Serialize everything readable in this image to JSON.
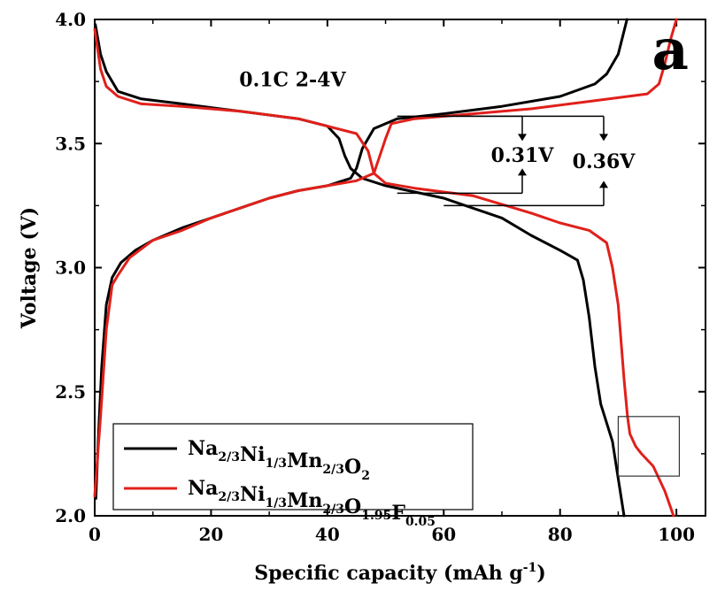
{
  "chart_data": {
    "type": "line",
    "xlabel": "Specific capacity (mAh g",
    "xlabel_sup": "-1",
    "xlabel_close": ")",
    "ylabel": "Voltage (V)",
    "xlim": [
      0,
      105
    ],
    "ylim": [
      2.0,
      4.0
    ],
    "x_ticks": [
      "0",
      "20",
      "40",
      "60",
      "80",
      "100"
    ],
    "y_ticks": [
      "2.0",
      "2.5",
      "3.0",
      "3.5",
      "4.0"
    ],
    "annotation": "0.1C 2-4V",
    "panel_label": "a",
    "voltage_gaps": [
      "0.31V",
      "0.36V"
    ],
    "legend_position": "bottom-left",
    "series": [
      {
        "name": "Na2/3Ni1/3Mn2/3O2",
        "color": "#000000",
        "segments": [
          {
            "label": "charge",
            "points": [
              [
                0.2,
                2.07
              ],
              [
                0.6,
                2.3
              ],
              [
                1.2,
                2.6
              ],
              [
                2,
                2.85
              ],
              [
                3,
                2.96
              ],
              [
                4.5,
                3.02
              ],
              [
                7,
                3.07
              ],
              [
                10,
                3.11
              ],
              [
                15,
                3.16
              ],
              [
                20,
                3.2
              ],
              [
                25,
                3.24
              ],
              [
                30,
                3.28
              ],
              [
                35,
                3.31
              ],
              [
                40,
                3.33
              ],
              [
                44,
                3.36
              ],
              [
                45,
                3.4
              ],
              [
                46,
                3.48
              ],
              [
                48,
                3.56
              ],
              [
                52,
                3.6
              ],
              [
                60,
                3.62
              ],
              [
                70,
                3.65
              ],
              [
                80,
                3.69
              ],
              [
                86,
                3.74
              ],
              [
                88,
                3.78
              ],
              [
                90,
                3.86
              ],
              [
                91.5,
                4.0
              ]
            ]
          },
          {
            "label": "discharge",
            "points": [
              [
                0.1,
                3.98
              ],
              [
                1,
                3.86
              ],
              [
                2,
                3.79
              ],
              [
                4,
                3.71
              ],
              [
                8,
                3.68
              ],
              [
                15,
                3.66
              ],
              [
                25,
                3.63
              ],
              [
                35,
                3.6
              ],
              [
                40,
                3.57
              ],
              [
                42,
                3.52
              ],
              [
                43,
                3.45
              ],
              [
                44,
                3.4
              ],
              [
                46,
                3.36
              ],
              [
                50,
                3.33
              ],
              [
                60,
                3.28
              ],
              [
                70,
                3.2
              ],
              [
                75,
                3.13
              ],
              [
                80,
                3.07
              ],
              [
                83,
                3.03
              ],
              [
                84,
                2.95
              ],
              [
                85,
                2.8
              ],
              [
                86,
                2.6
              ],
              [
                87,
                2.45
              ],
              [
                89,
                2.3
              ],
              [
                90,
                2.15
              ],
              [
                91,
                2.0
              ]
            ]
          }
        ]
      },
      {
        "name": "Na2/3Ni1/3Mn2/3O1.95F0.05",
        "color": "#e0201b",
        "segments": [
          {
            "label": "charge",
            "points": [
              [
                0,
                2.08
              ],
              [
                1,
                2.4
              ],
              [
                2,
                2.75
              ],
              [
                3,
                2.93
              ],
              [
                4,
                2.97
              ],
              [
                6,
                3.04
              ],
              [
                10,
                3.11
              ],
              [
                15,
                3.15
              ],
              [
                20,
                3.2
              ],
              [
                25,
                3.24
              ],
              [
                30,
                3.28
              ],
              [
                35,
                3.31
              ],
              [
                40,
                3.33
              ],
              [
                45,
                3.35
              ],
              [
                48,
                3.38
              ],
              [
                49,
                3.45
              ],
              [
                50,
                3.52
              ],
              [
                51,
                3.58
              ],
              [
                55,
                3.6
              ],
              [
                65,
                3.62
              ],
              [
                75,
                3.64
              ],
              [
                85,
                3.67
              ],
              [
                95,
                3.7
              ],
              [
                97,
                3.74
              ],
              [
                98,
                3.82
              ],
              [
                99,
                3.92
              ],
              [
                100,
                4.0
              ]
            ]
          },
          {
            "label": "discharge",
            "points": [
              [
                0,
                3.96
              ],
              [
                1,
                3.8
              ],
              [
                2,
                3.73
              ],
              [
                4,
                3.69
              ],
              [
                8,
                3.66
              ],
              [
                15,
                3.65
              ],
              [
                25,
                3.63
              ],
              [
                35,
                3.6
              ],
              [
                45,
                3.54
              ],
              [
                47,
                3.47
              ],
              [
                48,
                3.38
              ],
              [
                50,
                3.34
              ],
              [
                55,
                3.32
              ],
              [
                65,
                3.29
              ],
              [
                75,
                3.22
              ],
              [
                80,
                3.18
              ],
              [
                85,
                3.15
              ],
              [
                88,
                3.1
              ],
              [
                89,
                3.0
              ],
              [
                90,
                2.85
              ],
              [
                91,
                2.55
              ],
              [
                91.6,
                2.4
              ],
              [
                92,
                2.33
              ],
              [
                93,
                2.28
              ],
              [
                94,
                2.25
              ],
              [
                96,
                2.2
              ],
              [
                98,
                2.1
              ],
              [
                99.5,
                2.0
              ]
            ]
          }
        ]
      }
    ]
  }
}
